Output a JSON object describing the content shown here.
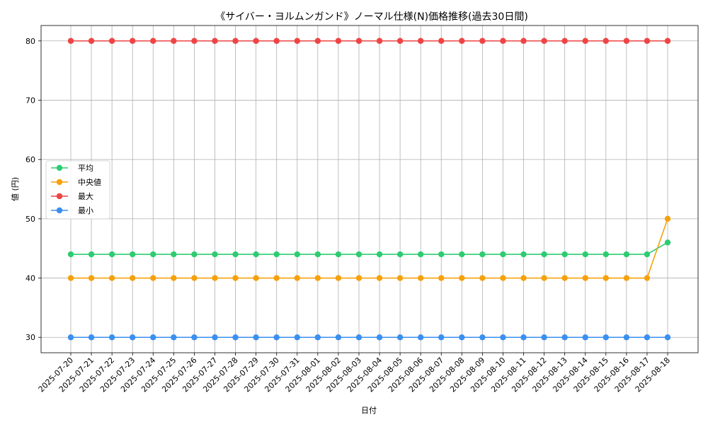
{
  "chart_data": {
    "type": "line",
    "title": "《サイバー・ヨルムンガンド》ノーマル仕様(N)価格推移(過去30日間)",
    "xlabel": "日付",
    "ylabel": "値 (円)",
    "ylim": [
      27.4,
      82.6
    ],
    "yticks": [
      30,
      40,
      50,
      60,
      70,
      80
    ],
    "grid": true,
    "legend_position": "center-left",
    "categories": [
      "2025-07-20",
      "2025-07-21",
      "2025-07-22",
      "2025-07-23",
      "2025-07-24",
      "2025-07-25",
      "2025-07-26",
      "2025-07-27",
      "2025-07-28",
      "2025-07-29",
      "2025-07-30",
      "2025-07-31",
      "2025-08-01",
      "2025-08-02",
      "2025-08-03",
      "2025-08-04",
      "2025-08-05",
      "2025-08-06",
      "2025-08-07",
      "2025-08-08",
      "2025-08-09",
      "2025-08-10",
      "2025-08-11",
      "2025-08-12",
      "2025-08-13",
      "2025-08-14",
      "2025-08-15",
      "2025-08-16",
      "2025-08-17",
      "2025-08-18"
    ],
    "series": [
      {
        "name": "平均",
        "color": "#2ecc71",
        "values": [
          44,
          44,
          44,
          44,
          44,
          44,
          44,
          44,
          44,
          44,
          44,
          44,
          44,
          44,
          44,
          44,
          44,
          44,
          44,
          44,
          44,
          44,
          44,
          44,
          44,
          44,
          44,
          44,
          44,
          46
        ]
      },
      {
        "name": "中央値",
        "color": "#f5a10c",
        "values": [
          40,
          40,
          40,
          40,
          40,
          40,
          40,
          40,
          40,
          40,
          40,
          40,
          40,
          40,
          40,
          40,
          40,
          40,
          40,
          40,
          40,
          40,
          40,
          40,
          40,
          40,
          40,
          40,
          40,
          50
        ]
      },
      {
        "name": "最大",
        "color": "#ef4444",
        "values": [
          80,
          80,
          80,
          80,
          80,
          80,
          80,
          80,
          80,
          80,
          80,
          80,
          80,
          80,
          80,
          80,
          80,
          80,
          80,
          80,
          80,
          80,
          80,
          80,
          80,
          80,
          80,
          80,
          80,
          80
        ]
      },
      {
        "name": "最小",
        "color": "#3b8ff0",
        "values": [
          30,
          30,
          30,
          30,
          30,
          30,
          30,
          30,
          30,
          30,
          30,
          30,
          30,
          30,
          30,
          30,
          30,
          30,
          30,
          30,
          30,
          30,
          30,
          30,
          30,
          30,
          30,
          30,
          30,
          30
        ]
      }
    ]
  }
}
